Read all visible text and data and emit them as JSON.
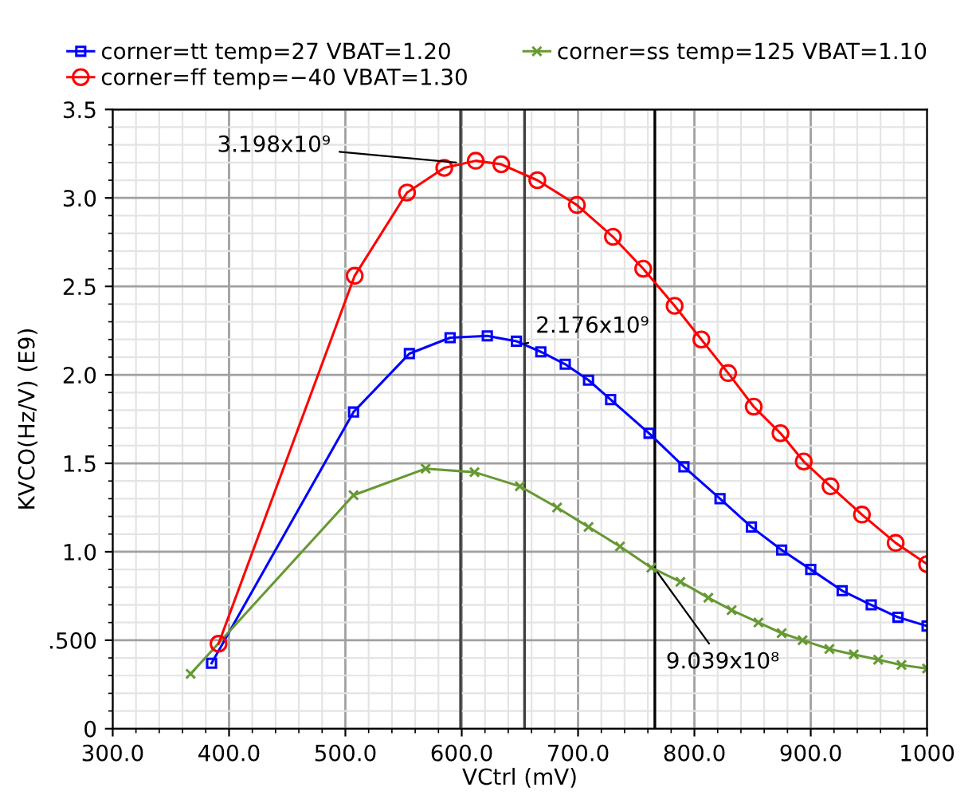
{
  "chart_data": {
    "type": "line",
    "xlabel": "VCtrl (mV)",
    "ylabel": "KVCO(Hz/V) (E9)",
    "xlim": [
      300,
      1000
    ],
    "ylim": [
      0,
      3.5
    ],
    "xticks": [
      {
        "value": 300,
        "label": "300.0"
      },
      {
        "value": 400,
        "label": "400.0"
      },
      {
        "value": 500,
        "label": "500.0"
      },
      {
        "value": 600,
        "label": "600.0"
      },
      {
        "value": 700,
        "label": "700.0"
      },
      {
        "value": 800,
        "label": "800.0"
      },
      {
        "value": 900,
        "label": "900.0"
      },
      1000
    ],
    "yticks": [
      0,
      {
        "value": 0.5,
        "label": ".500"
      },
      {
        "value": 1.0,
        "label": "1.0"
      },
      1.5,
      {
        "value": 2.0,
        "label": "2.0"
      },
      2.5,
      {
        "value": 3.0,
        "label": "3.0"
      },
      3.5
    ],
    "grid": true,
    "legend": "top",
    "series": [
      {
        "name": "corner=tt temp=27 VBAT=1.20",
        "color": "#0000ff",
        "marker": "square",
        "x": [
          385,
          507,
          555,
          590,
          622,
          647,
          668,
          689,
          709,
          728,
          761,
          791,
          822,
          849,
          875,
          900,
          927,
          952,
          975,
          1000
        ],
        "values": [
          0.37,
          1.79,
          2.12,
          2.21,
          2.22,
          2.19,
          2.13,
          2.06,
          1.97,
          1.86,
          1.67,
          1.48,
          1.3,
          1.14,
          1.01,
          0.9,
          0.78,
          0.7,
          0.63,
          0.58
        ]
      },
      {
        "name": "corner=ss temp=125 VBAT=1.10",
        "color": "#669933",
        "marker": "cross",
        "x": [
          367,
          507,
          569,
          611,
          650,
          682,
          709,
          736,
          763,
          788,
          812,
          832,
          855,
          875,
          893,
          916,
          937,
          958,
          978,
          1000
        ],
        "values": [
          0.31,
          1.32,
          1.47,
          1.45,
          1.37,
          1.25,
          1.14,
          1.03,
          0.91,
          0.83,
          0.74,
          0.67,
          0.6,
          0.54,
          0.5,
          0.45,
          0.42,
          0.39,
          0.36,
          0.34
        ]
      },
      {
        "name": "corner=ff temp=−40 VBAT=1.30",
        "color": "#ff0000",
        "marker": "circle",
        "x": [
          391,
          508,
          553,
          585,
          612,
          634,
          665,
          699,
          730,
          756,
          783,
          806,
          829,
          851,
          874,
          894,
          917,
          944,
          973,
          1000
        ],
        "values": [
          0.48,
          2.56,
          3.03,
          3.17,
          3.21,
          3.19,
          3.1,
          2.96,
          2.78,
          2.6,
          2.39,
          2.2,
          2.01,
          1.82,
          1.67,
          1.51,
          1.37,
          1.21,
          1.05,
          0.93
        ]
      }
    ],
    "ref_lines": [
      {
        "axis": "x",
        "value": 599,
        "color": "#404040"
      },
      {
        "axis": "x",
        "value": 654,
        "color": "#404040"
      },
      {
        "axis": "x",
        "value": 766,
        "color": "#000000"
      }
    ],
    "annotations": [
      {
        "text": "3.198x10⁹",
        "x": 599,
        "y": 3.198
      },
      {
        "text": "2.176x10⁹",
        "x": 654,
        "y": 2.176
      },
      {
        "text": "9.039x10⁸",
        "x": 766,
        "y": 0.9039
      }
    ]
  }
}
